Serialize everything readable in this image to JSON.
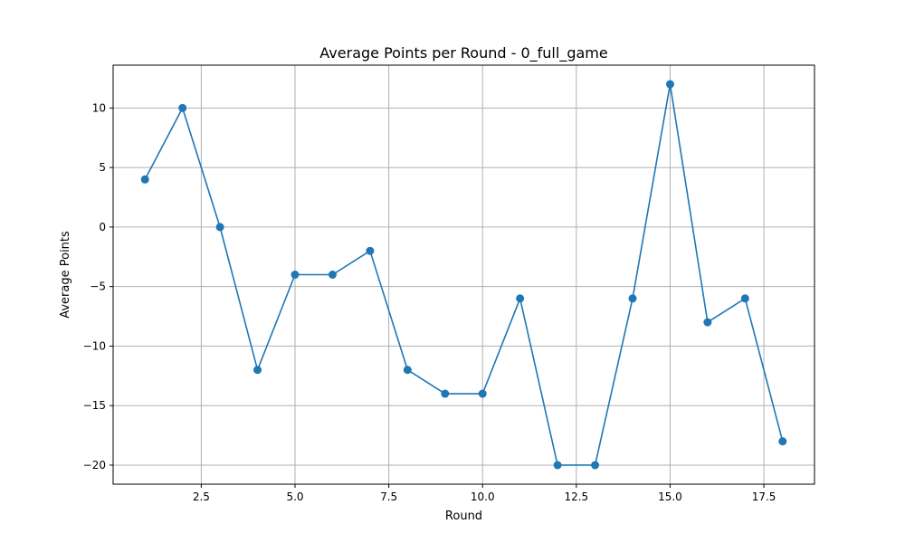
{
  "chart_data": {
    "type": "line",
    "title": "Average Points per Round - 0_full_game",
    "xlabel": "Round",
    "ylabel": "Average Points",
    "xlim": [
      0.15,
      18.85
    ],
    "ylim": [
      -21.6,
      13.6
    ],
    "x_ticks": [
      2.5,
      5.0,
      7.5,
      10.0,
      12.5,
      15.0,
      17.5
    ],
    "x_tick_labels": [
      "2.5",
      "5.0",
      "7.5",
      "10.0",
      "12.5",
      "15.0",
      "17.5"
    ],
    "y_ticks": [
      10,
      5,
      0,
      -5,
      -10,
      -15,
      -20
    ],
    "y_tick_labels": [
      "10",
      "5",
      "0",
      "−5",
      "−10",
      "−15",
      "−20"
    ],
    "grid": true,
    "series": [
      {
        "color": "#1f77b4",
        "marker": "circle",
        "x": [
          1,
          2,
          3,
          4,
          5,
          6,
          7,
          8,
          9,
          10,
          11,
          12,
          13,
          14,
          15,
          16,
          17,
          18
        ],
        "y": [
          4,
          10,
          0,
          -12,
          -4,
          -4,
          -2,
          -12,
          -14,
          -14,
          -6,
          -20,
          -20,
          -6,
          12,
          -8,
          -6,
          -18
        ]
      }
    ]
  }
}
